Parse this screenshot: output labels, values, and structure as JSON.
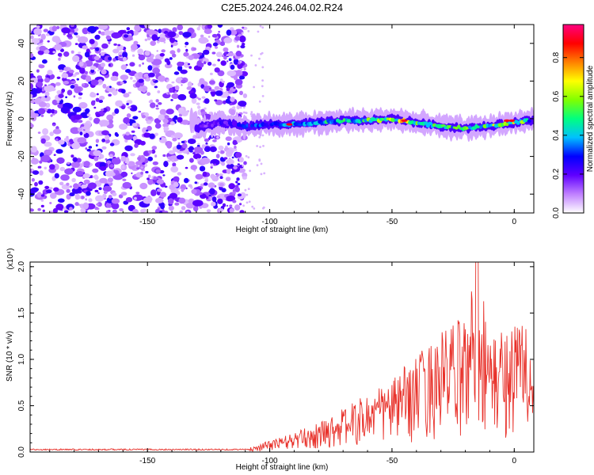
{
  "chart_data": [
    {
      "type": "heatmap",
      "title": "C2E5.2024.246.04.02.R24",
      "xlabel": "Height of straight line (km)",
      "ylabel": "Frequency (Hz)",
      "xlim": [
        -198,
        8
      ],
      "ylim": [
        -50,
        50
      ],
      "x_ticks": [
        -150,
        -100,
        -50,
        0
      ],
      "x_tick_labels": [
        "-150",
        "-100",
        "-50",
        "0"
      ],
      "y_ticks": [
        -40,
        -20,
        0,
        20,
        40
      ],
      "y_tick_labels": [
        "-40",
        "-20",
        "0",
        "20",
        "40"
      ],
      "colorbar": {
        "label": "Normalized spectral amplitude",
        "range": [
          0.0,
          0.97
        ],
        "ticks": [
          0.0,
          0.2,
          0.4,
          0.6,
          0.8
        ],
        "tick_labels": [
          "0.0",
          "0.2",
          "0.4",
          "0.6",
          "0.8"
        ],
        "colors": [
          "#ffffff",
          "#c080ff",
          "#6000ff",
          "#0000ff",
          "#00c0ff",
          "#00ff80",
          "#80ff00",
          "#ffff00",
          "#ff8000",
          "#ff0000",
          "#ff0080"
        ]
      },
      "noise_region_x": [
        -198,
        -110
      ],
      "signal_band": [
        {
          "x": -130,
          "freq": -5,
          "amp": 0.2
        },
        {
          "x": -120,
          "freq": -2,
          "amp": 0.25
        },
        {
          "x": -110,
          "freq": -4,
          "amp": 0.3
        },
        {
          "x": -100,
          "freq": -3,
          "amp": 0.35
        },
        {
          "x": -90,
          "freq": -3,
          "amp": 0.4
        },
        {
          "x": -80,
          "freq": -2,
          "amp": 0.45
        },
        {
          "x": -70,
          "freq": -1,
          "amp": 0.5
        },
        {
          "x": -60,
          "freq": -1,
          "amp": 0.55
        },
        {
          "x": -50,
          "freq": 0,
          "amp": 0.6
        },
        {
          "x": -45,
          "freq": -1,
          "amp": 0.7
        },
        {
          "x": -40,
          "freq": -2,
          "amp": 0.6
        },
        {
          "x": -30,
          "freq": -4,
          "amp": 0.5
        },
        {
          "x": -20,
          "freq": -5,
          "amp": 0.55
        },
        {
          "x": -10,
          "freq": -4,
          "amp": 0.6
        },
        {
          "x": 0,
          "freq": -2,
          "amp": 0.7
        },
        {
          "x": 5,
          "freq": -1,
          "amp": 0.5
        }
      ]
    },
    {
      "type": "line",
      "title": "",
      "xlabel": "Height of straight line (km)",
      "ylabel": "SNR (10 * v/v)",
      "y_multiplier": "(x10⁴)",
      "xlim": [
        -198,
        8
      ],
      "ylim": [
        0,
        2.05
      ],
      "x_ticks": [
        -150,
        -100,
        -50,
        0
      ],
      "x_tick_labels": [
        "-150",
        "-100",
        "-50",
        "0"
      ],
      "y_ticks": [
        0,
        0.5,
        1.0,
        1.5,
        2.0
      ],
      "y_tick_labels": [
        "0.0",
        "0.5",
        "1.0",
        "1.5",
        "2.0"
      ],
      "series_color": "#e8312a",
      "envelope": [
        {
          "x": -198,
          "y": 0.03
        },
        {
          "x": -150,
          "y": 0.03
        },
        {
          "x": -110,
          "y": 0.03
        },
        {
          "x": -100,
          "y": 0.12
        },
        {
          "x": -90,
          "y": 0.2
        },
        {
          "x": -80,
          "y": 0.3
        },
        {
          "x": -70,
          "y": 0.45
        },
        {
          "x": -60,
          "y": 0.6
        },
        {
          "x": -50,
          "y": 0.75
        },
        {
          "x": -40,
          "y": 1.0
        },
        {
          "x": -30,
          "y": 1.25
        },
        {
          "x": -20,
          "y": 1.4
        },
        {
          "x": -15,
          "y": 2.05
        },
        {
          "x": -10,
          "y": 1.2
        },
        {
          "x": 0,
          "y": 1.35
        },
        {
          "x": 5,
          "y": 1.5
        },
        {
          "x": 8,
          "y": 0.8
        }
      ]
    }
  ]
}
